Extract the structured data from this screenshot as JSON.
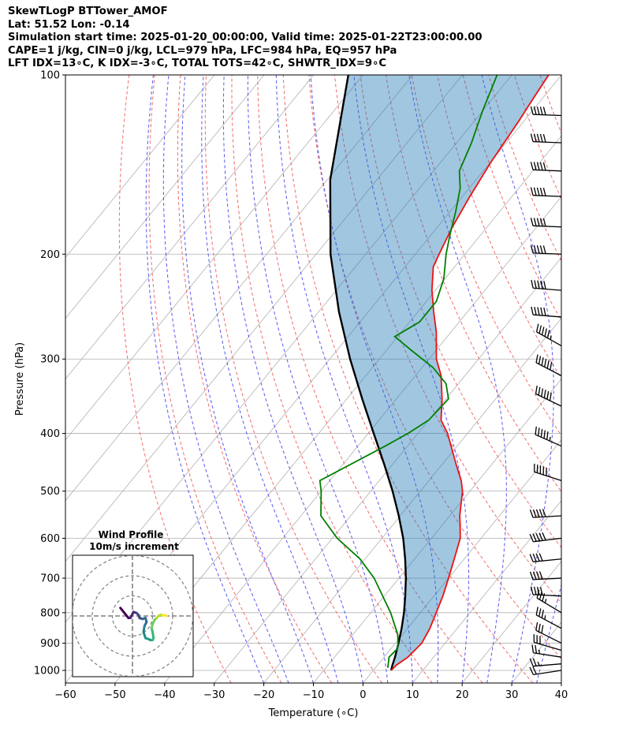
{
  "chart_data": {
    "type": "line",
    "subtype": "skew-t log-p",
    "title_lines": [
      "SkewTLogP BTTower_AMOF",
      "Lat: 51.52   Lon: -0.14",
      "Simulation start time: 2025-01-20_00:00:00, Valid time: 2025-01-22T23:00:00.00",
      "CAPE=1 j/kg, CIN=0 j/kg, LCL=979 hPa, LFC=984 hPa, EQ=957 hPa",
      "LFT IDX=13∘C, K IDX=-3∘C, TOTAL TOTS=42∘C, SHWTR_IDX=9∘C"
    ],
    "xlabel": "Temperature (∘C)",
    "ylabel": "Pressure (hPa)",
    "xlim": [
      -60,
      40
    ],
    "ylim": [
      1050,
      100
    ],
    "x_ticks": [
      -60,
      -50,
      -40,
      -30,
      -20,
      -10,
      0,
      10,
      20,
      30,
      40
    ],
    "x_tick_labels": [
      "−60",
      "−50",
      "−40",
      "−30",
      "−20",
      "−10",
      "0",
      "10",
      "20",
      "30",
      "40"
    ],
    "y_ticks": [
      1000,
      900,
      800,
      700,
      600,
      500,
      400,
      300,
      200,
      100
    ],
    "y_tick_labels": [
      "1000",
      "900",
      "800",
      "700",
      "600",
      "500",
      "400",
      "300",
      "200",
      "100"
    ],
    "series": [
      {
        "name": "Temperature",
        "color": "#ee1111",
        "points": [
          [
            1000,
            3.6
          ],
          [
            980,
            3.8
          ],
          [
            950,
            4.8
          ],
          [
            930,
            5.0
          ],
          [
            900,
            5.3
          ],
          [
            850,
            4.5
          ],
          [
            800,
            3.2
          ],
          [
            750,
            1.8
          ],
          [
            700,
            0.0
          ],
          [
            650,
            -2.0
          ],
          [
            600,
            -4.2
          ],
          [
            570,
            -6.4
          ],
          [
            550,
            -8.0
          ],
          [
            500,
            -11.5
          ],
          [
            480,
            -13.5
          ],
          [
            450,
            -17.3
          ],
          [
            400,
            -24.0
          ],
          [
            380,
            -27.5
          ],
          [
            350,
            -30.8
          ],
          [
            320,
            -34.8
          ],
          [
            300,
            -38.5
          ],
          [
            270,
            -43.0
          ],
          [
            250,
            -46.8
          ],
          [
            230,
            -50.7
          ],
          [
            210,
            -54.3
          ],
          [
            200,
            -55.2
          ],
          [
            180,
            -57.0
          ],
          [
            160,
            -58.5
          ],
          [
            140,
            -59.9
          ],
          [
            120,
            -61.0
          ],
          [
            110,
            -61.8
          ],
          [
            100,
            -62.6
          ]
        ]
      },
      {
        "name": "Dewpoint",
        "color": "#008000",
        "points": [
          [
            990,
            2.5
          ],
          [
            950,
            1.0
          ],
          [
            920,
            1.3
          ],
          [
            900,
            0.5
          ],
          [
            870,
            -1.0
          ],
          [
            800,
            -6.0
          ],
          [
            700,
            -15.0
          ],
          [
            650,
            -21.0
          ],
          [
            600,
            -29.0
          ],
          [
            550,
            -36.0
          ],
          [
            500,
            -40.0
          ],
          [
            480,
            -42.0
          ],
          [
            420,
            -34.5
          ],
          [
            400,
            -32.0
          ],
          [
            380,
            -30.0
          ],
          [
            350,
            -29.5
          ],
          [
            330,
            -32.5
          ],
          [
            310,
            -37.8
          ],
          [
            290,
            -45.0
          ],
          [
            275,
            -50.6
          ],
          [
            260,
            -48.0
          ],
          [
            240,
            -48.0
          ],
          [
            220,
            -50.2
          ],
          [
            200,
            -53.8
          ],
          [
            185,
            -56.3
          ],
          [
            170,
            -58.8
          ],
          [
            155,
            -61.8
          ],
          [
            145,
            -64.8
          ],
          [
            130,
            -67.0
          ],
          [
            115,
            -70.0
          ],
          [
            100,
            -73.0
          ]
        ]
      },
      {
        "name": "Parcel Profile",
        "color": "#000000",
        "points": [
          [
            1000,
            3.6
          ],
          [
            980,
            3.0
          ],
          [
            950,
            2.2
          ],
          [
            900,
            0.6
          ],
          [
            850,
            -1.2
          ],
          [
            800,
            -3.3
          ],
          [
            750,
            -5.8
          ],
          [
            700,
            -8.6
          ],
          [
            650,
            -11.9
          ],
          [
            600,
            -15.7
          ],
          [
            550,
            -20.3
          ],
          [
            500,
            -25.6
          ],
          [
            450,
            -31.8
          ],
          [
            400,
            -38.9
          ],
          [
            350,
            -46.9
          ],
          [
            300,
            -55.9
          ],
          [
            250,
            -65.9
          ],
          [
            200,
            -77.1
          ],
          [
            150,
            -89.4
          ],
          [
            100,
            -103.0
          ]
        ]
      }
    ],
    "shaded_region": "area between parcel profile and temperature",
    "reference_lines": [
      "isotherms",
      "dry adiabats",
      "moist adiabats",
      "mixing ratio lines"
    ],
    "wind_barbs": [
      {
        "pressure": 1000,
        "u_ms": 10.0,
        "v_ms": 1.5
      },
      {
        "pressure": 975,
        "u_ms": 12.0,
        "v_ms": 1.0
      },
      {
        "pressure": 950,
        "u_ms": 13.0,
        "v_ms": -2.0
      },
      {
        "pressure": 925,
        "u_ms": 14.0,
        "v_ms": -4.0
      },
      {
        "pressure": 900,
        "u_ms": 14.0,
        "v_ms": -7.0
      },
      {
        "pressure": 850,
        "u_ms": 15.0,
        "v_ms": -8.0
      },
      {
        "pressure": 800,
        "u_ms": 15.0,
        "v_ms": -9.0
      },
      {
        "pressure": 750,
        "u_ms": 20.0,
        "v_ms": -1.0
      },
      {
        "pressure": 700,
        "u_ms": 20.0,
        "v_ms": 1.0
      },
      {
        "pressure": 650,
        "u_ms": 20.0,
        "v_ms": 2.0
      },
      {
        "pressure": 600,
        "u_ms": 25.0,
        "v_ms": 3.0
      },
      {
        "pressure": 550,
        "u_ms": 25.0,
        "v_ms": 1.5
      },
      {
        "pressure": 480,
        "u_ms": 25.0,
        "v_ms": -8.0
      },
      {
        "pressure": 420,
        "u_ms": 25.0,
        "v_ms": -11.0
      },
      {
        "pressure": 360,
        "u_ms": 27.0,
        "v_ms": -13.0
      },
      {
        "pressure": 320,
        "u_ms": 27.0,
        "v_ms": -14.0
      },
      {
        "pressure": 285,
        "u_ms": 25.0,
        "v_ms": -14.0
      },
      {
        "pressure": 255,
        "u_ms": 25.0,
        "v_ms": -2.0
      },
      {
        "pressure": 230,
        "u_ms": 25.0,
        "v_ms": -2.0
      },
      {
        "pressure": 200,
        "u_ms": 25.0,
        "v_ms": -1.0
      },
      {
        "pressure": 180,
        "u_ms": 25.0,
        "v_ms": -1.0
      },
      {
        "pressure": 160,
        "u_ms": 25.0,
        "v_ms": -1.0
      },
      {
        "pressure": 145,
        "u_ms": 25.0,
        "v_ms": -1.0
      },
      {
        "pressure": 130,
        "u_ms": 25.0,
        "v_ms": -1.0
      },
      {
        "pressure": 117,
        "u_ms": 25.0,
        "v_ms": -1.0
      }
    ],
    "hodograph": {
      "title": "Wind Profile",
      "subtitle": "10m/s increment",
      "ring_increment_ms": 10,
      "points": [
        [
          -6,
          4
        ],
        [
          -4,
          1.5
        ],
        [
          -2,
          -1
        ],
        [
          -1,
          -1
        ],
        [
          0,
          1
        ],
        [
          0.5,
          2
        ],
        [
          2,
          1.5
        ],
        [
          3,
          0.5
        ],
        [
          3.5,
          -1
        ],
        [
          5,
          -1.5
        ],
        [
          6.5,
          -1
        ],
        [
          7,
          -3
        ],
        [
          6,
          -5
        ],
        [
          5.5,
          -8
        ],
        [
          6.5,
          -11
        ],
        [
          8,
          -11.5
        ],
        [
          9,
          -12
        ],
        [
          10,
          -12
        ],
        [
          10.5,
          -11
        ],
        [
          10,
          -8
        ],
        [
          9.5,
          -6
        ],
        [
          10,
          -4
        ],
        [
          11,
          -2
        ],
        [
          12,
          -1
        ],
        [
          13,
          0
        ],
        [
          14,
          0.5
        ],
        [
          15,
          0.5
        ],
        [
          16,
          0.3
        ],
        [
          17,
          0
        ]
      ]
    }
  }
}
